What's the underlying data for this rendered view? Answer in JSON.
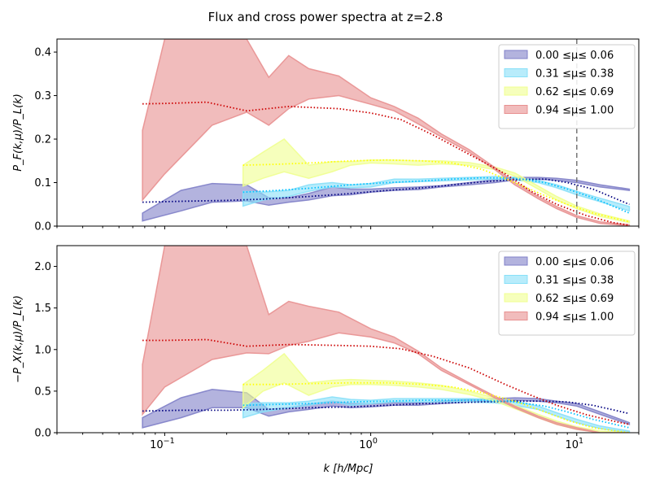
{
  "chart_data": {
    "type": "area",
    "title": "Flux and cross power spectra at z=2.8",
    "xscale": "log",
    "xlabel": "k [h/Mpc]",
    "xlim": [
      0.03,
      20
    ],
    "xticks": [
      {
        "value": 0.1,
        "base": "10",
        "exp": "−1"
      },
      {
        "value": 1,
        "base": "10",
        "exp": "0"
      },
      {
        "value": 10,
        "base": "10",
        "exp": "1"
      }
    ],
    "vline_k": 10,
    "legend_loc": "upper right",
    "legend_labels": [
      "0.00  ≤μ≤  0.06",
      "0.31  ≤μ≤  0.38",
      "0.62  ≤μ≤  0.69",
      "0.94  ≤μ≤  1.00"
    ],
    "colors": {
      "band": [
        "#8080c8",
        "#88e0f8",
        "#f0ff90",
        "#e89090"
      ],
      "line": [
        "#000080",
        "#00bfff",
        "#ffff00",
        "#cc0000"
      ]
    },
    "panels": [
      {
        "name": "flux",
        "ylabel": "P_F(k,μ)/P_L(k)",
        "ylim": [
          0,
          0.43
        ],
        "yticks": [
          "0.0",
          "0.1",
          "0.2",
          "0.3",
          "0.4"
        ],
        "ytick_values": [
          0,
          0.1,
          0.2,
          0.3,
          0.4
        ],
        "series": [
          {
            "name": "0.00 ≤μ≤ 0.06",
            "band": {
              "k": [
                0.078,
                0.12,
                0.17,
                0.25,
                0.32,
                0.4,
                0.5,
                0.65,
                0.8,
                1.0,
                1.3,
                1.7,
                2.2,
                3,
                4,
                5,
                6.5,
                8,
                10,
                13,
                18
              ],
              "lower": [
                0.012,
                0.035,
                0.055,
                0.058,
                0.048,
                0.055,
                0.06,
                0.07,
                0.072,
                0.078,
                0.082,
                0.084,
                0.09,
                0.095,
                0.1,
                0.106,
                0.108,
                0.105,
                0.1,
                0.09,
                0.082
              ],
              "upper": [
                0.03,
                0.082,
                0.098,
                0.095,
                0.065,
                0.065,
                0.075,
                0.09,
                0.085,
                0.085,
                0.088,
                0.09,
                0.093,
                0.1,
                0.106,
                0.112,
                0.112,
                0.11,
                0.105,
                0.095,
                0.085
              ]
            },
            "model": {
              "k": [
                0.078,
                0.12,
                0.2,
                0.3,
                0.5,
                0.8,
                1.2,
                1.8,
                2.5,
                3.5,
                5,
                7,
                9,
                12,
                18
              ],
              "values": [
                0.055,
                0.057,
                0.059,
                0.062,
                0.068,
                0.075,
                0.082,
                0.088,
                0.095,
                0.102,
                0.107,
                0.108,
                0.1,
                0.085,
                0.05
              ]
            }
          },
          {
            "name": "0.31 ≤μ≤ 0.38",
            "band": {
              "k": [
                0.24,
                0.3,
                0.4,
                0.5,
                0.65,
                0.8,
                1.0,
                1.3,
                1.7,
                2.2,
                3,
                4,
                5,
                6.5,
                8,
                10,
                13,
                18
              ],
              "lower": [
                0.046,
                0.06,
                0.068,
                0.08,
                0.09,
                0.088,
                0.09,
                0.1,
                0.102,
                0.104,
                0.106,
                0.108,
                0.106,
                0.1,
                0.088,
                0.072,
                0.056,
                0.035
              ],
              "upper": [
                0.08,
                0.078,
                0.082,
                0.095,
                0.1,
                0.095,
                0.098,
                0.108,
                0.108,
                0.11,
                0.112,
                0.114,
                0.112,
                0.105,
                0.095,
                0.08,
                0.064,
                0.045
              ]
            },
            "model": {
              "k": [
                0.24,
                0.35,
                0.5,
                0.8,
                1.2,
                1.8,
                2.5,
                3.5,
                5,
                7,
                9,
                12,
                18
              ],
              "values": [
                0.078,
                0.082,
                0.087,
                0.095,
                0.1,
                0.104,
                0.108,
                0.111,
                0.11,
                0.1,
                0.085,
                0.065,
                0.03
              ]
            }
          },
          {
            "name": "0.62 ≤μ≤ 0.69",
            "band": {
              "k": [
                0.24,
                0.3,
                0.38,
                0.5,
                0.65,
                0.8,
                1.0,
                1.3,
                1.7,
                2.2,
                3,
                4,
                5,
                6.5,
                8,
                10,
                13,
                18
              ],
              "lower": [
                0.092,
                0.11,
                0.125,
                0.11,
                0.125,
                0.14,
                0.145,
                0.143,
                0.14,
                0.143,
                0.14,
                0.13,
                0.115,
                0.085,
                0.06,
                0.04,
                0.022,
                0.008
              ],
              "upper": [
                0.14,
                0.17,
                0.2,
                0.14,
                0.148,
                0.148,
                0.152,
                0.152,
                0.15,
                0.15,
                0.146,
                0.136,
                0.122,
                0.092,
                0.068,
                0.046,
                0.028,
                0.012
              ]
            },
            "model": {
              "k": [
                0.24,
                0.35,
                0.5,
                0.8,
                1.2,
                1.8,
                2.5,
                3.5,
                5,
                7,
                9,
                12,
                18
              ],
              "values": [
                0.14,
                0.142,
                0.145,
                0.15,
                0.152,
                0.15,
                0.145,
                0.13,
                0.1,
                0.07,
                0.05,
                0.03,
                0.01
              ]
            }
          },
          {
            "name": "0.94 ≤μ≤ 1.00",
            "band": {
              "k": [
                0.078,
                0.1,
                0.17,
                0.25,
                0.32,
                0.4,
                0.5,
                0.7,
                1.0,
                1.3,
                1.7,
                2.2,
                3,
                4,
                5,
                6.5,
                8,
                10,
                13,
                18
              ],
              "lower": [
                0.06,
                0.12,
                0.232,
                0.262,
                0.232,
                0.27,
                0.292,
                0.3,
                0.28,
                0.265,
                0.235,
                0.205,
                0.17,
                0.13,
                0.095,
                0.063,
                0.04,
                0.02,
                0.006,
                0.001
              ],
              "upper": [
                0.22,
                0.43,
                0.43,
                0.43,
                0.342,
                0.392,
                0.362,
                0.345,
                0.295,
                0.275,
                0.248,
                0.212,
                0.176,
                0.135,
                0.1,
                0.068,
                0.045,
                0.024,
                0.01,
                0.003
              ]
            },
            "model": {
              "k": [
                0.078,
                0.1,
                0.16,
                0.25,
                0.4,
                0.7,
                1.0,
                1.4,
                2.0,
                3.0,
                4.5,
                6,
                8,
                11,
                15,
                18
              ],
              "values": [
                0.281,
                0.282,
                0.285,
                0.265,
                0.275,
                0.27,
                0.26,
                0.245,
                0.21,
                0.165,
                0.12,
                0.08,
                0.05,
                0.025,
                0.008,
                0.002
              ]
            }
          }
        ]
      },
      {
        "name": "cross",
        "ylabel": "−P_X(k,μ)/P_L(k)",
        "ylim": [
          0,
          2.25
        ],
        "yticks": [
          "0.0",
          "0.5",
          "1.0",
          "1.5",
          "2.0"
        ],
        "ytick_values": [
          0,
          0.5,
          1.0,
          1.5,
          2.0
        ],
        "series": [
          {
            "name": "0.00 ≤μ≤ 0.06",
            "band": {
              "k": [
                0.078,
                0.12,
                0.17,
                0.25,
                0.32,
                0.4,
                0.5,
                0.65,
                0.8,
                1.0,
                1.3,
                1.7,
                2.2,
                3,
                4,
                5,
                6.5,
                8,
                10,
                13,
                18
              ],
              "lower": [
                0.06,
                0.18,
                0.3,
                0.3,
                0.2,
                0.25,
                0.28,
                0.32,
                0.3,
                0.31,
                0.33,
                0.33,
                0.35,
                0.37,
                0.38,
                0.39,
                0.38,
                0.36,
                0.32,
                0.22,
                0.1
              ],
              "upper": [
                0.18,
                0.42,
                0.52,
                0.48,
                0.28,
                0.3,
                0.34,
                0.38,
                0.35,
                0.35,
                0.36,
                0.36,
                0.38,
                0.4,
                0.41,
                0.42,
                0.41,
                0.38,
                0.35,
                0.25,
                0.12
              ]
            },
            "model": {
              "k": [
                0.078,
                0.12,
                0.2,
                0.3,
                0.5,
                0.8,
                1.2,
                1.8,
                2.5,
                3.5,
                5,
                7,
                9,
                12,
                18
              ],
              "values": [
                0.26,
                0.27,
                0.27,
                0.28,
                0.3,
                0.31,
                0.33,
                0.35,
                0.36,
                0.37,
                0.38,
                0.38,
                0.37,
                0.33,
                0.23
              ]
            }
          },
          {
            "name": "0.31 ≤μ≤ 0.38",
            "band": {
              "k": [
                0.24,
                0.3,
                0.4,
                0.5,
                0.65,
                0.8,
                1.0,
                1.3,
                1.7,
                2.2,
                3,
                4,
                5,
                6.5,
                8,
                10,
                13,
                18
              ],
              "lower": [
                0.18,
                0.25,
                0.3,
                0.33,
                0.38,
                0.33,
                0.35,
                0.37,
                0.37,
                0.37,
                0.37,
                0.36,
                0.33,
                0.28,
                0.2,
                0.12,
                0.05,
                0.0
              ],
              "upper": [
                0.35,
                0.36,
                0.36,
                0.38,
                0.43,
                0.4,
                0.39,
                0.41,
                0.41,
                0.41,
                0.41,
                0.4,
                0.38,
                0.32,
                0.24,
                0.16,
                0.08,
                0.02
              ]
            },
            "model": {
              "k": [
                0.24,
                0.35,
                0.5,
                0.8,
                1.2,
                1.8,
                2.5,
                3.5,
                5,
                7,
                9,
                12,
                18
              ],
              "values": [
                0.33,
                0.34,
                0.35,
                0.37,
                0.38,
                0.39,
                0.39,
                0.39,
                0.37,
                0.32,
                0.25,
                0.16,
                0.06
              ]
            }
          },
          {
            "name": "0.62 ≤μ≤ 0.69",
            "band": {
              "k": [
                0.24,
                0.3,
                0.38,
                0.5,
                0.65,
                0.8,
                1.0,
                1.3,
                1.7,
                2.2,
                3,
                4,
                5,
                6.5,
                8,
                10,
                13,
                18
              ],
              "lower": [
                0.3,
                0.5,
                0.6,
                0.45,
                0.55,
                0.58,
                0.58,
                0.57,
                0.55,
                0.52,
                0.46,
                0.38,
                0.29,
                0.18,
                0.1,
                0.04,
                0.0,
                0.0
              ],
              "upper": [
                0.58,
                0.75,
                0.95,
                0.6,
                0.63,
                0.64,
                0.63,
                0.62,
                0.6,
                0.57,
                0.5,
                0.42,
                0.33,
                0.22,
                0.14,
                0.07,
                0.02,
                0.0
              ]
            },
            "model": {
              "k": [
                0.24,
                0.35,
                0.5,
                0.8,
                1.2,
                1.8,
                2.5,
                3.5,
                5,
                7,
                9,
                12,
                18
              ],
              "values": [
                0.58,
                0.58,
                0.59,
                0.6,
                0.6,
                0.58,
                0.55,
                0.48,
                0.38,
                0.25,
                0.15,
                0.06,
                0.0
              ]
            }
          },
          {
            "name": "0.94 ≤μ≤ 1.00",
            "band": {
              "k": [
                0.078,
                0.1,
                0.17,
                0.25,
                0.32,
                0.4,
                0.5,
                0.7,
                1.0,
                1.3,
                1.7,
                2.2,
                3,
                4,
                5,
                6.5,
                8,
                10,
                13,
                18
              ],
              "lower": [
                0.22,
                0.55,
                0.88,
                0.96,
                0.95,
                1.05,
                1.1,
                1.2,
                1.15,
                1.08,
                0.95,
                0.75,
                0.58,
                0.42,
                0.3,
                0.18,
                0.1,
                0.04,
                0.0,
                0.0
              ],
              "upper": [
                0.82,
                2.25,
                2.25,
                2.25,
                1.42,
                1.58,
                1.52,
                1.45,
                1.25,
                1.15,
                0.98,
                0.78,
                0.6,
                0.44,
                0.32,
                0.2,
                0.12,
                0.06,
                0.0,
                0.0
              ]
            },
            "model": {
              "k": [
                0.078,
                0.1,
                0.16,
                0.25,
                0.4,
                0.7,
                1.0,
                1.4,
                2.0,
                3.0,
                4.5,
                6,
                8,
                11,
                15,
                18
              ],
              "values": [
                1.11,
                1.11,
                1.12,
                1.04,
                1.06,
                1.05,
                1.04,
                1.01,
                0.92,
                0.78,
                0.58,
                0.45,
                0.33,
                0.22,
                0.14,
                0.1
              ]
            }
          }
        ]
      }
    ]
  }
}
